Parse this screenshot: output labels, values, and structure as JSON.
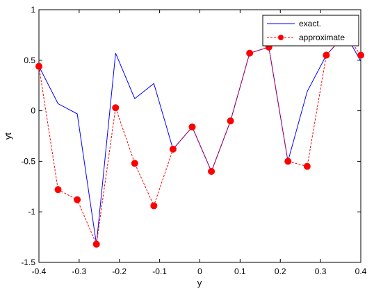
{
  "chart_data": {
    "type": "line",
    "xlabel": "y",
    "ylabel": "yt",
    "xlim": [
      -0.4,
      0.4
    ],
    "ylim": [
      -1.5,
      1
    ],
    "xticks": [
      "-0.4",
      "-0.3",
      "-0.2",
      "-0.1",
      "0",
      "0.1",
      "0.2",
      "0.3",
      "0.4"
    ],
    "yticks": [
      "-1.5",
      "-1",
      "-0.5",
      "0",
      "0.5",
      "1"
    ],
    "grid": false,
    "legend_position": "top-right",
    "x": [
      -0.4,
      -0.3524,
      -0.3048,
      -0.2571,
      -0.2095,
      -0.1619,
      -0.1143,
      -0.0667,
      -0.019,
      0.0286,
      0.0762,
      0.1238,
      0.1714,
      0.219,
      0.2667,
      0.3143,
      0.3619,
      0.4
    ],
    "series": [
      {
        "name": "exact.",
        "color": "#0000ff",
        "style": "solid",
        "marker": "none",
        "values": [
          0.44,
          0.07,
          -0.03,
          -1.32,
          0.57,
          0.12,
          0.27,
          -0.38,
          -0.16,
          -0.6,
          -0.1,
          0.57,
          0.63,
          -0.5,
          0.19,
          0.55,
          0.76,
          0.49
        ]
      },
      {
        "name": "approximate",
        "color": "#ff0000",
        "style": "dashed",
        "marker": "circle",
        "values": [
          0.44,
          -0.78,
          -0.88,
          -1.32,
          0.03,
          -0.52,
          -0.94,
          -0.38,
          -0.16,
          -0.6,
          -0.1,
          0.57,
          0.63,
          -0.5,
          -0.55,
          0.55,
          0.76,
          0.55
        ]
      }
    ]
  }
}
